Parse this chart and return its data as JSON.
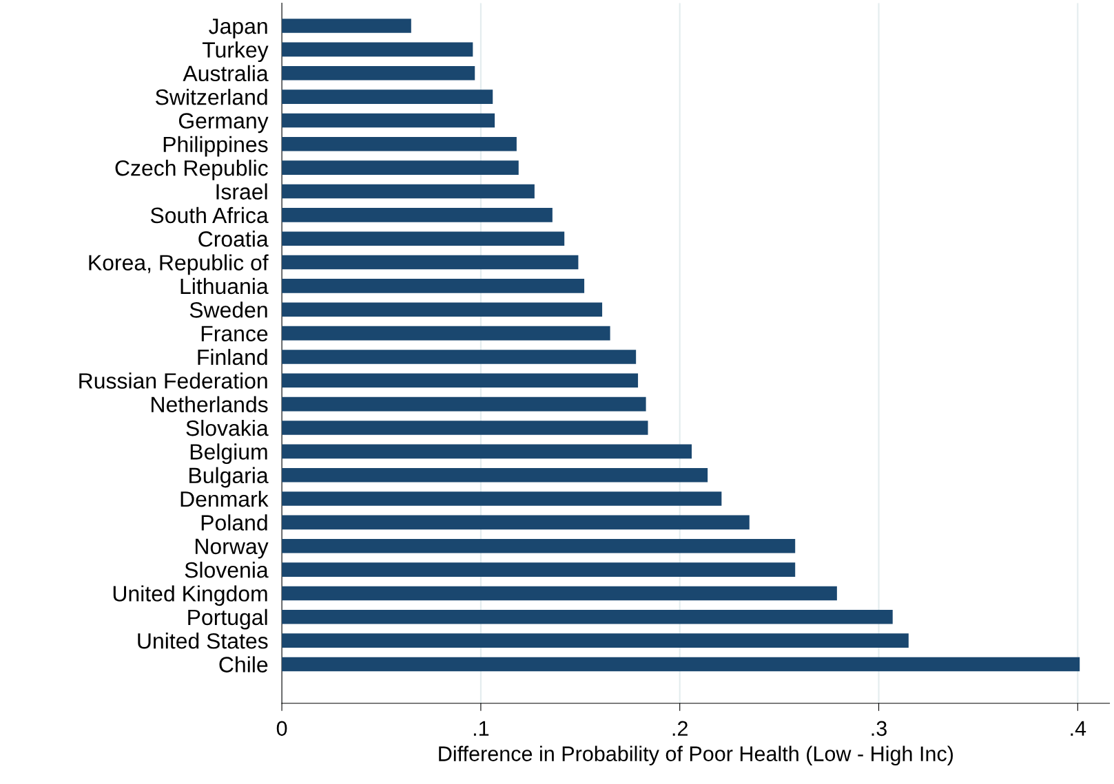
{
  "chart_data": {
    "type": "bar",
    "orientation": "horizontal",
    "xlabel": "Difference in Probability of Poor Health (Low - High Inc)",
    "categories": [
      "Japan",
      "Turkey",
      "Australia",
      "Switzerland",
      "Germany",
      "Philippines",
      "Czech Republic",
      "Israel",
      "South Africa",
      "Croatia",
      "Korea, Republic of",
      "Lithuania",
      "Sweden",
      "France",
      "Finland",
      "Russian Federation",
      "Netherlands",
      "Slovakia",
      "Belgium",
      "Bulgaria",
      "Denmark",
      "Poland",
      "Norway",
      "Slovenia",
      "United Kingdom",
      "Portugal",
      "United States",
      "Chile"
    ],
    "values": [
      0.065,
      0.096,
      0.097,
      0.106,
      0.107,
      0.118,
      0.119,
      0.127,
      0.136,
      0.142,
      0.149,
      0.152,
      0.161,
      0.165,
      0.178,
      0.179,
      0.183,
      0.184,
      0.206,
      0.214,
      0.221,
      0.235,
      0.258,
      0.258,
      0.279,
      0.307,
      0.315,
      0.401
    ],
    "color": "#1a476f",
    "xlim": [
      0,
      0.416
    ],
    "xticks": [
      0,
      {
        "value": 0.1,
        "label": ".1"
      },
      {
        "value": 0.2,
        "label": ".2"
      },
      {
        "value": 0.3,
        "label": ".3"
      },
      {
        "value": 0.4,
        "label": ".4"
      }
    ],
    "grid": "x",
    "legend": false
  }
}
